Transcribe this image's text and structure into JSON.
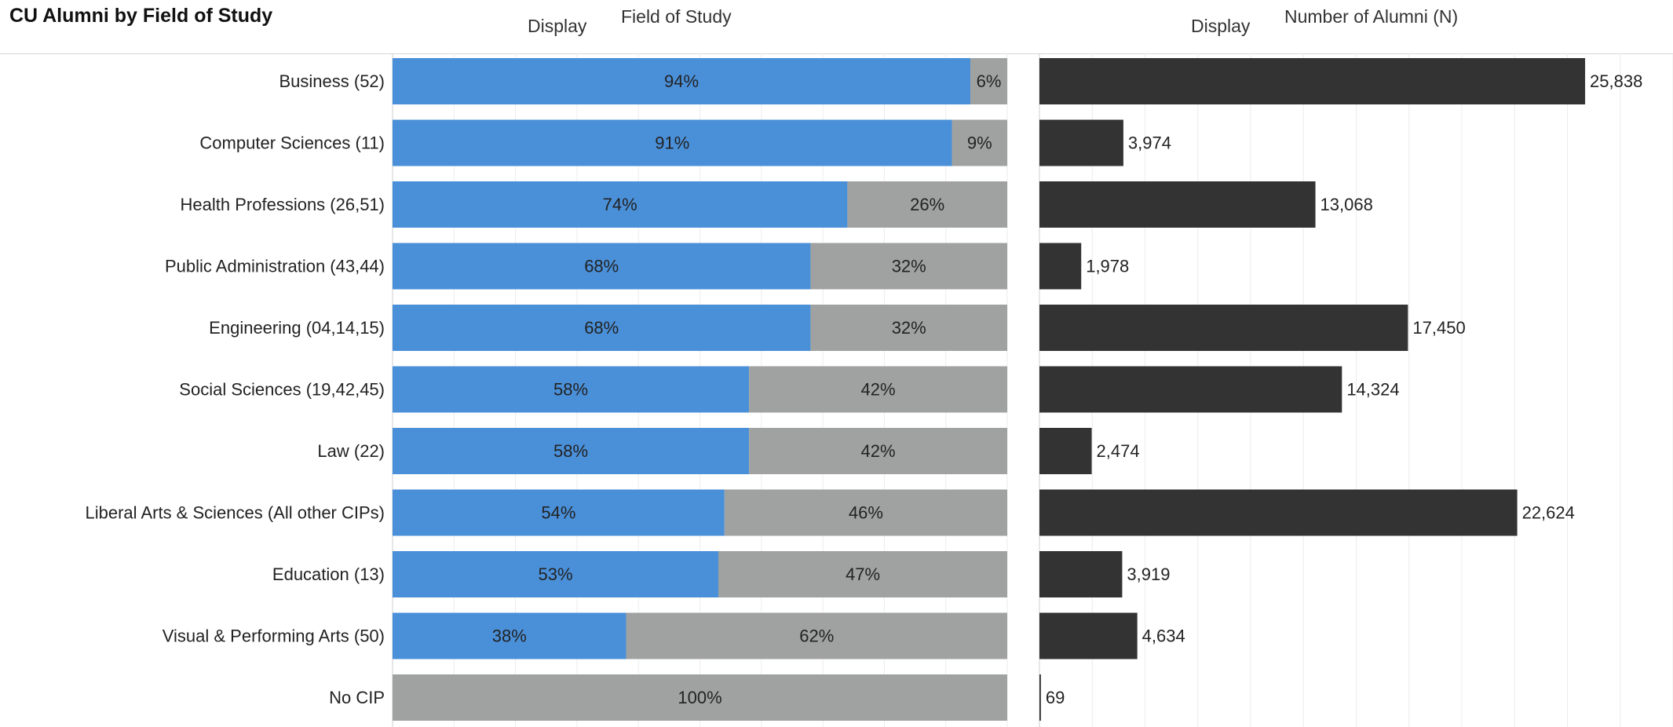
{
  "page_title": "CU Alumni by Field of Study",
  "headers": {
    "display_left": "Display",
    "field_of_study": "Field of Study",
    "display_right": "Display",
    "number_of_alumni": "Number of Alumni (N)"
  },
  "colors": {
    "primary_share": "#4a90d9",
    "secondary_share": "#a0a2a1",
    "count_bar": "#333333",
    "gridline": "#ececec"
  },
  "chart_data": [
    {
      "type": "bar",
      "orientation": "horizontal",
      "stacked": true,
      "normalized": true,
      "title": "Field of Study",
      "categories": [
        "Business (52)",
        "Computer Sciences (11)",
        "Health Professions (26,51)",
        "Public Administration (43,44)",
        "Engineering (04,14,15)",
        "Social Sciences (19,42,45)",
        "Law (22)",
        "Liberal Arts & Sciences (All other CIPs)",
        "Education (13)",
        "Visual & Performing Arts (50)",
        "No CIP"
      ],
      "series": [
        {
          "values": [
            94,
            91,
            74,
            68,
            68,
            58,
            58,
            54,
            53,
            38,
            0
          ],
          "labels": [
            "94%",
            "91%",
            "74%",
            "68%",
            "68%",
            "58%",
            "58%",
            "54%",
            "53%",
            "38%",
            ""
          ]
        },
        {
          "values": [
            6,
            9,
            26,
            32,
            32,
            42,
            42,
            46,
            47,
            62,
            100
          ],
          "labels": [
            "6%",
            "9%",
            "26%",
            "32%",
            "32%",
            "42%",
            "42%",
            "46%",
            "47%",
            "62%",
            "100%"
          ]
        }
      ],
      "xlim": [
        0,
        100
      ],
      "grid": true
    },
    {
      "type": "bar",
      "orientation": "horizontal",
      "title": "Number of Alumni (N)",
      "categories": [
        "Business (52)",
        "Computer Sciences (11)",
        "Health Professions (26,51)",
        "Public Administration (43,44)",
        "Engineering (04,14,15)",
        "Social Sciences (19,42,45)",
        "Law (22)",
        "Liberal Arts & Sciences (All other CIPs)",
        "Education (13)",
        "Visual & Performing Arts (50)",
        "No CIP"
      ],
      "values": [
        25838,
        3974,
        13068,
        1978,
        17450,
        14324,
        2474,
        22624,
        3919,
        4634,
        69
      ],
      "value_labels": [
        "25,838",
        "3,974",
        "13,068",
        "1,978",
        "17,450",
        "14,324",
        "2,474",
        "22,624",
        "3,919",
        "4,634",
        "69"
      ],
      "xlim": [
        0,
        30000
      ],
      "grid": true
    }
  ]
}
